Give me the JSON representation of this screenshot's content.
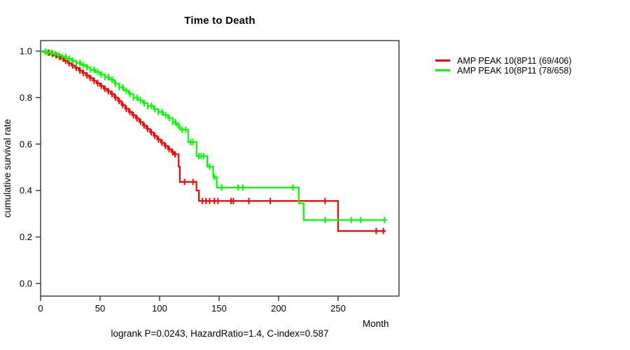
{
  "title": "Time to Death",
  "footer": "logrank P=0.0243, HazardRatio=1.4, C-index=0.587",
  "x_axis": {
    "label": "Month",
    "ticks": [
      "0",
      "50",
      "100",
      "150",
      "200",
      "250"
    ],
    "tick_values": [
      0,
      50,
      100,
      150,
      200,
      250
    ]
  },
  "y_axis": {
    "label": "cumulative survival rate",
    "ticks": [
      "0.0",
      "0.2",
      "0.4",
      "0.6",
      "0.8",
      "1.0"
    ],
    "tick_values": [
      0.0,
      0.2,
      0.4,
      0.6,
      0.8,
      1.0
    ]
  },
  "legend": [
    {
      "label": "AMP PEAK 10(8P11 (69/406)",
      "color": "#ff0000"
    },
    {
      "label": "AMP PEAK 10(8P11 (78/658)",
      "color": "#00ff00"
    }
  ],
  "colors": {
    "axis": "#262626",
    "text": "#000000",
    "background": "#ffffff"
  },
  "chart_data": {
    "type": "line",
    "subtype": "kaplan-meier-step",
    "title": "Time to Death",
    "xlabel": "Month",
    "ylabel": "cumulative survival rate",
    "xlim": [
      0,
      300
    ],
    "ylim": [
      0.0,
      1.0
    ],
    "grid": false,
    "legend_position": "right-outside",
    "annotation": "logrank P=0.0243, HazardRatio=1.4, C-index=0.587",
    "series": [
      {
        "name": "AMP PEAK 10(8P11 (69/406)",
        "color": "#ff0000",
        "events_total": "69/406",
        "end_month": 290,
        "steps": [
          [
            0,
            1.0
          ],
          [
            2,
            0.997
          ],
          [
            5,
            0.993
          ],
          [
            8,
            0.988
          ],
          [
            11,
            0.982
          ],
          [
            14,
            0.975
          ],
          [
            17,
            0.967
          ],
          [
            20,
            0.958
          ],
          [
            23,
            0.948
          ],
          [
            26,
            0.938
          ],
          [
            29,
            0.928
          ],
          [
            32,
            0.917
          ],
          [
            35,
            0.906
          ],
          [
            38,
            0.895
          ],
          [
            41,
            0.884
          ],
          [
            44,
            0.872
          ],
          [
            47,
            0.861
          ],
          [
            50,
            0.85
          ],
          [
            53,
            0.838
          ],
          [
            56,
            0.827
          ],
          [
            59,
            0.815
          ],
          [
            62,
            0.8
          ],
          [
            65,
            0.785
          ],
          [
            68,
            0.768
          ],
          [
            71,
            0.752
          ],
          [
            74,
            0.738
          ],
          [
            77,
            0.724
          ],
          [
            80,
            0.71
          ],
          [
            83,
            0.695
          ],
          [
            86,
            0.68
          ],
          [
            89,
            0.665
          ],
          [
            92,
            0.65
          ],
          [
            95,
            0.635
          ],
          [
            98,
            0.62
          ],
          [
            101,
            0.606
          ],
          [
            104,
            0.592
          ],
          [
            107,
            0.578
          ],
          [
            110,
            0.565
          ],
          [
            112,
            0.556
          ],
          [
            116,
            0.503
          ],
          [
            117,
            0.437
          ],
          [
            131,
            0.4
          ],
          [
            133,
            0.355
          ],
          [
            250,
            0.226
          ]
        ],
        "censor_months": [
          4,
          7,
          10,
          13,
          16,
          19,
          21,
          24,
          27,
          30,
          33,
          36,
          39,
          42,
          45,
          48,
          51,
          54,
          57,
          60,
          63,
          66,
          69,
          72,
          75,
          78,
          81,
          84,
          87,
          90,
          93,
          96,
          99,
          102,
          105,
          108,
          111,
          113,
          121,
          128,
          136,
          139,
          142,
          146,
          149,
          160,
          162,
          175,
          193,
          239,
          282,
          288
        ]
      },
      {
        "name": "AMP PEAK 10(8P11 (78/658)",
        "color": "#00ff00",
        "events_total": "78/658",
        "end_month": 291,
        "steps": [
          [
            0,
            1.0
          ],
          [
            3,
            0.997
          ],
          [
            6,
            0.993
          ],
          [
            10,
            0.988
          ],
          [
            14,
            0.982
          ],
          [
            18,
            0.975
          ],
          [
            22,
            0.967
          ],
          [
            26,
            0.958
          ],
          [
            30,
            0.949
          ],
          [
            34,
            0.94
          ],
          [
            38,
            0.93
          ],
          [
            42,
            0.92
          ],
          [
            46,
            0.91
          ],
          [
            50,
            0.899
          ],
          [
            54,
            0.888
          ],
          [
            58,
            0.877
          ],
          [
            62,
            0.86
          ],
          [
            66,
            0.845
          ],
          [
            70,
            0.83
          ],
          [
            74,
            0.815
          ],
          [
            78,
            0.8
          ],
          [
            82,
            0.788
          ],
          [
            86,
            0.776
          ],
          [
            90,
            0.764
          ],
          [
            95,
            0.75
          ],
          [
            99,
            0.738
          ],
          [
            103,
            0.725
          ],
          [
            107,
            0.712
          ],
          [
            111,
            0.695
          ],
          [
            114,
            0.68
          ],
          [
            117,
            0.662
          ],
          [
            124,
            0.608
          ],
          [
            131,
            0.548
          ],
          [
            140,
            0.503
          ],
          [
            145,
            0.458
          ],
          [
            148,
            0.413
          ],
          [
            217,
            0.345
          ],
          [
            221,
            0.273
          ]
        ],
        "censor_months": [
          4,
          6,
          9,
          12,
          15,
          18,
          21,
          24,
          27,
          30,
          33,
          36,
          39,
          42,
          45,
          48,
          51,
          54,
          57,
          60,
          63,
          66,
          69,
          72,
          75,
          78,
          81,
          84,
          87,
          90,
          93,
          96,
          99,
          102,
          105,
          108,
          111,
          113,
          116,
          119,
          122,
          126,
          128,
          133,
          135,
          137,
          142,
          146,
          152,
          166,
          170,
          212,
          239,
          261,
          269,
          289
        ]
      }
    ]
  }
}
